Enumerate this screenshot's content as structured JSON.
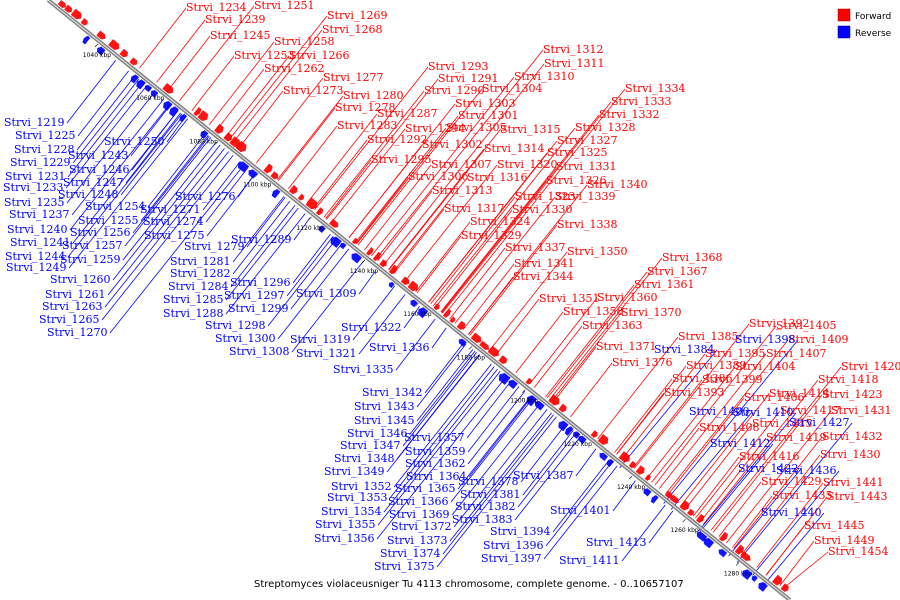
{
  "legend": {
    "forward": {
      "label": "Forward",
      "color": "#ff0000"
    },
    "reverse": {
      "label": "Reverse",
      "color": "#0000ff"
    }
  },
  "caption": "Streptomyces violaceusniger Tu 4113 chromosome, complete genome. - 0..10657107",
  "ticks": [
    "1040 kbp",
    "1060 kbp",
    "1080 kbp",
    "1100 kbp",
    "1120 kbp",
    "1140 kbp",
    "1160 kbp",
    "1180 kbp",
    "1200 kbp",
    "1220 kbp",
    "1240 kbp",
    "1260 kbp",
    "1280 kbp"
  ],
  "forward_genes": [
    "Strvi_1234",
    "Strvi_1251",
    "Strvi_1239",
    "Strvi_1269",
    "Strvi_1268",
    "Strvi_1245",
    "Strvi_1258",
    "Strvi_1253",
    "Strvi_1266",
    "Strvi_1262",
    "Strvi_1277",
    "Strvi_1273",
    "Strvi_1280",
    "Strvi_1278",
    "Strvi_1287",
    "Strvi_1283",
    "Strvi_1292",
    "Strvi_1294",
    "Strvi_1295",
    "Strvi_1293",
    "Strvi_1291",
    "Strvi_1290",
    "Strvi_1304",
    "Strvi_1303",
    "Strvi_1301",
    "Strvi_1305",
    "Strvi_1302",
    "Strvi_1307",
    "Strvi_1306",
    "Strvi_1313",
    "Strvi_1317",
    "Strvi_1312",
    "Strvi_1311",
    "Strvi_1310",
    "Strvi_1315",
    "Strvi_1314",
    "Strvi_1320",
    "Strvi_1316",
    "Strvi_1323",
    "Strvi_1330",
    "Strvi_1324",
    "Strvi_1329",
    "Strvi_1337",
    "Strvi_1341",
    "Strvi_1344",
    "Strvi_1334",
    "Strvi_1333",
    "Strvi_1332",
    "Strvi_1328",
    "Strvi_1327",
    "Strvi_1325",
    "Strvi_1331",
    "Strvi_1326",
    "Strvi_1340",
    "Strvi_1339",
    "Strvi_1338",
    "Strvi_1350",
    "Strvi_1351",
    "Strvi_1358",
    "Strvi_1363",
    "Strvi_1368",
    "Strvi_1367",
    "Strvi_1361",
    "Strvi_1360",
    "Strvi_1370",
    "Strvi_1371",
    "Strvi_1376",
    "Strvi_1392",
    "Strvi_1385",
    "Strvi_1389",
    "Strvi_1386",
    "Strvi_1393",
    "Strvi_1395",
    "Strvi_1399",
    "Strvi_1404",
    "Strvi_1405",
    "Strvi_1409",
    "Strvi_1407",
    "Strvi_1406",
    "Strvi_1414",
    "Strvi_1415",
    "Strvi_1408",
    "Strvi_1419",
    "Strvi_1416",
    "Strvi_1420",
    "Strvi_1418",
    "Strvi_1423",
    "Strvi_1417",
    "Strvi_1431",
    "Strvi_1432",
    "Strvi_1430",
    "Strvi_1429",
    "Strvi_1441",
    "Strvi_1435",
    "Strvi_1443",
    "Strvi_1445",
    "Strvi_1449",
    "Strvi_1454"
  ],
  "reverse_genes": [
    "Strvi_1219",
    "Strvi_1225",
    "Strvi_1228",
    "Strvi_1229",
    "Strvi_1231",
    "Strvi_1233",
    "Strvi_1235",
    "Strvi_1237",
    "Strvi_1240",
    "Strvi_1241",
    "Strvi_1244",
    "Strvi_1249",
    "Strvi_1250",
    "Strvi_1243",
    "Strvi_1246",
    "Strvi_1247",
    "Strvi_1248",
    "Strvi_1254",
    "Strvi_1255",
    "Strvi_1256",
    "Strvi_1257",
    "Strvi_1259",
    "Strvi_1260",
    "Strvi_1261",
    "Strvi_1263",
    "Strvi_1265",
    "Strvi_1270",
    "Strvi_1276",
    "Strvi_1271",
    "Strvi_1274",
    "Strvi_1275",
    "Strvi_1279",
    "Strvi_1281",
    "Strvi_1282",
    "Strvi_1284",
    "Strvi_1285",
    "Strvi_1288",
    "Strvi_1289",
    "Strvi_1296",
    "Strvi_1297",
    "Strvi_1299",
    "Strvi_1298",
    "Strvi_1300",
    "Strvi_1308",
    "Strvi_1309",
    "Strvi_1319",
    "Strvi_1321",
    "Strvi_1322",
    "Strvi_1336",
    "Strvi_1335",
    "Strvi_1342",
    "Strvi_1343",
    "Strvi_1345",
    "Strvi_1346",
    "Strvi_1347",
    "Strvi_1348",
    "Strvi_1349",
    "Strvi_1352",
    "Strvi_1353",
    "Strvi_1354",
    "Strvi_1355",
    "Strvi_1356",
    "Strvi_1357",
    "Strvi_1359",
    "Strvi_1362",
    "Strvi_1364",
    "Strvi_1365",
    "Strvi_1366",
    "Strvi_1369",
    "Strvi_1372",
    "Strvi_1373",
    "Strvi_1374",
    "Strvi_1375",
    "Strvi_1378",
    "Strvi_1381",
    "Strvi_1382",
    "Strvi_1383",
    "Strvi_1387",
    "Strvi_1394",
    "Strvi_1396",
    "Strvi_1397",
    "Strvi_1401",
    "Strvi_1411",
    "Strvi_1413",
    "Strvi_1384",
    "Strvi_1398",
    "Strvi_1400",
    "Strvi_1410",
    "Strvi_1412",
    "Strvi_1422",
    "Strvi_1427",
    "Strvi_1436",
    "Strvi_1440"
  ]
}
